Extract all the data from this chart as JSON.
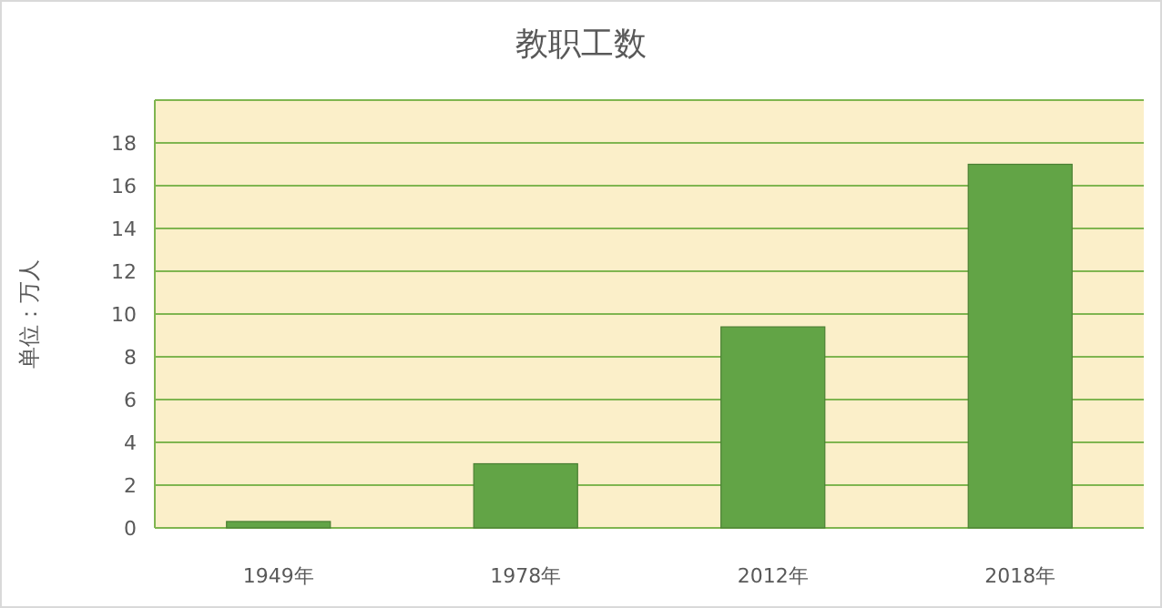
{
  "chart_data": {
    "type": "bar",
    "title": "教职工数",
    "ylabel": "单位：万人",
    "categories": [
      "1949年",
      "1978年",
      "2012年",
      "2018年"
    ],
    "values": [
      0.3,
      3.0,
      9.4,
      17.0
    ],
    "color": "#62a446",
    "ylim": [
      0,
      20
    ],
    "yticks": [
      0,
      2,
      4,
      6,
      8,
      10,
      12,
      14,
      16,
      18
    ],
    "grid": "y"
  }
}
